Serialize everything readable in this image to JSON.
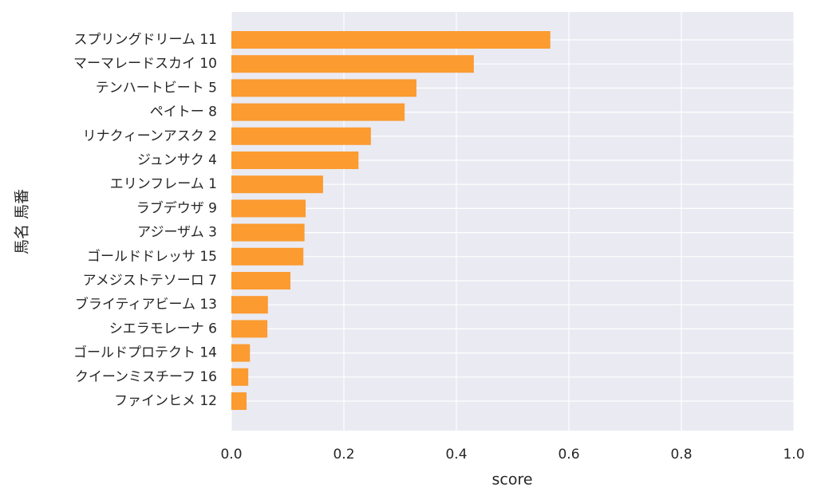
{
  "chart_data": {
    "type": "barh",
    "xlabel": "score",
    "ylabel": "馬名 馬番",
    "categories": [
      "スプリングドリーム 11",
      "マーマレードスカイ 10",
      "テンハートビート 5",
      "ペイトー 8",
      "リナクィーンアスク 2",
      "ジュンサク 4",
      "エリンフレーム 1",
      "ラブデウザ 9",
      "アジーザム 3",
      "ゴールドドレッサ 15",
      "アメジストテソーロ 7",
      "ブライティアビーム 13",
      "シエラモレーナ 6",
      "ゴールドプロテクト 14",
      "クイーンミスチーフ 16",
      "ファインヒメ 12"
    ],
    "values": [
      0.567,
      0.431,
      0.329,
      0.308,
      0.248,
      0.226,
      0.163,
      0.132,
      0.13,
      0.128,
      0.105,
      0.065,
      0.064,
      0.033,
      0.03,
      0.027
    ],
    "color": "#fb9b30",
    "xlim": [
      0,
      1
    ],
    "xticks": [
      {
        "value": 0,
        "label": "0.0"
      },
      0.2,
      0.4,
      0.6,
      0.8,
      {
        "value": 1,
        "label": "1.0"
      }
    ],
    "grid": true
  }
}
